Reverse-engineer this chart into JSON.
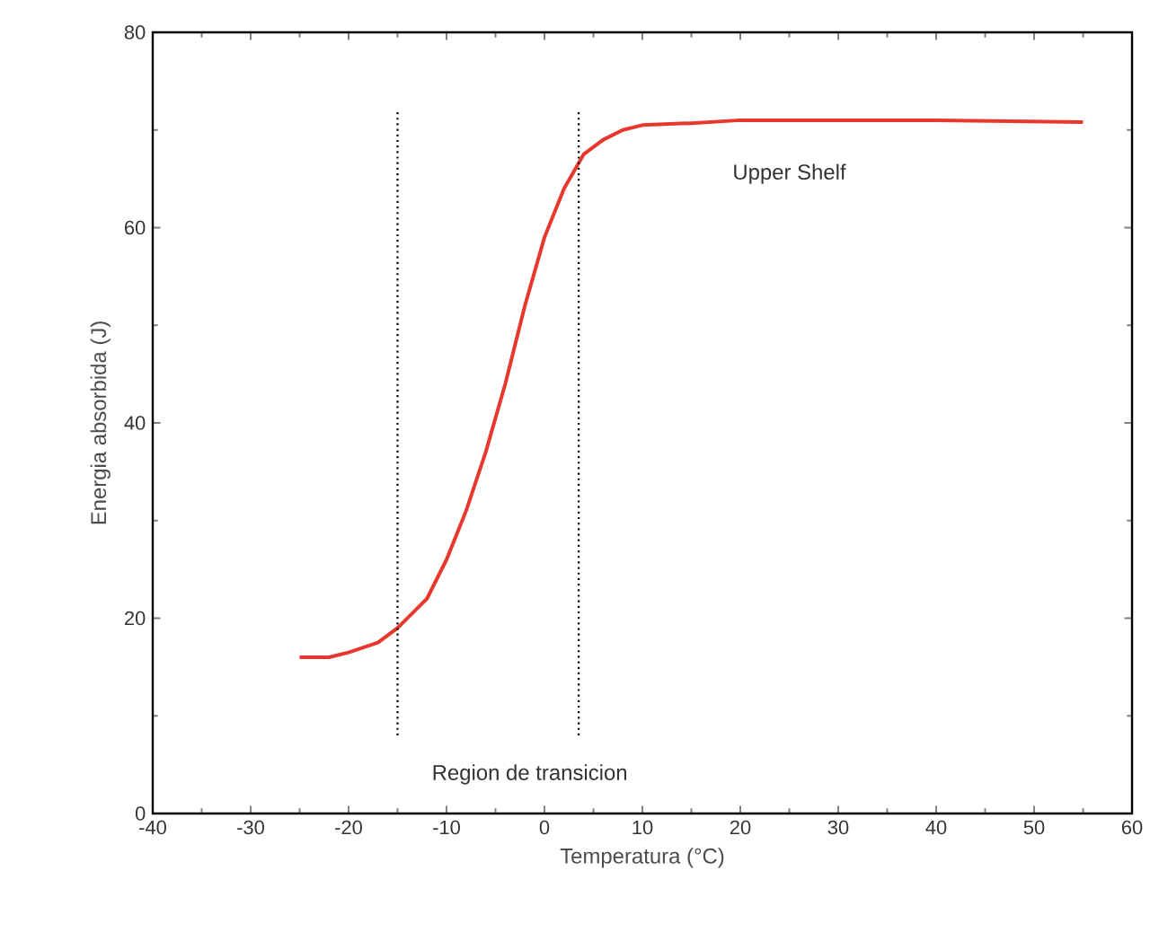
{
  "chart_data": {
    "type": "line",
    "xlabel": "Temperatura (°C)",
    "ylabel": "Energia absorbida (J)",
    "xlim": [
      -40,
      60
    ],
    "ylim": [
      0,
      80
    ],
    "xticks": [
      -40,
      -30,
      -20,
      -10,
      0,
      10,
      20,
      30,
      40,
      50,
      60
    ],
    "yticks": [
      0,
      20,
      40,
      60,
      80
    ],
    "grid": false,
    "marker": "none",
    "line_style": "solid",
    "series": [
      {
        "color": "#e8372c",
        "x": [
          -25,
          -22,
          -20,
          -17,
          -15,
          -13,
          -12,
          -10,
          -8,
          -6,
          -4,
          -2,
          0,
          2,
          4,
          6,
          8,
          10,
          15,
          20,
          30,
          40,
          55
        ],
        "values": [
          16,
          16,
          16.5,
          17.5,
          19,
          21,
          22,
          26,
          31,
          37,
          44,
          52,
          59,
          64,
          67.5,
          69,
          70,
          70.5,
          70.7,
          71,
          71,
          71,
          70.8
        ]
      }
    ],
    "ref_lines": [
      {
        "axis": "x",
        "value": -15,
        "color": "#000000",
        "line_style": "dotted"
      },
      {
        "axis": "x",
        "value": 3.5,
        "color": "#000000",
        "line_style": "dotted"
      }
    ],
    "annotations": [
      "Upper Shelf",
      "Region de transicion"
    ]
  }
}
